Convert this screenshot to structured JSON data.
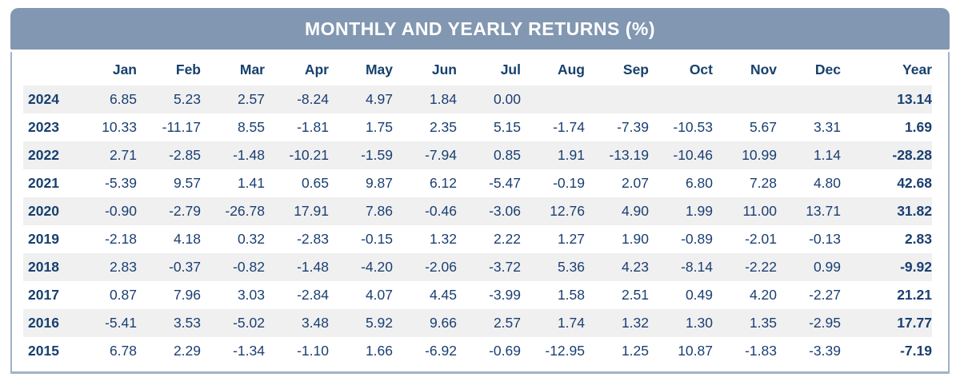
{
  "title": "MONTHLY AND YEARLY RETURNS (%)",
  "colors": {
    "header_background": "#8297B1",
    "header_text": "#FFFFFF",
    "table_text": "#1B3F70",
    "label_text": "#17406D",
    "stripe_row_background": "#F0F0F1",
    "card_border": "#A2B3C8",
    "page_background": "#FFFFFF"
  },
  "table": {
    "columns": [
      "",
      "Jan",
      "Feb",
      "Mar",
      "Apr",
      "May",
      "Jun",
      "Jul",
      "Aug",
      "Sep",
      "Oct",
      "Nov",
      "Dec",
      "Year"
    ],
    "rows": [
      {
        "year": "2024",
        "values": [
          "6.85",
          "5.23",
          "2.57",
          "-8.24",
          "4.97",
          "1.84",
          "0.00",
          "",
          "",
          "",
          "",
          "",
          "13.14"
        ]
      },
      {
        "year": "2023",
        "values": [
          "10.33",
          "-11.17",
          "8.55",
          "-1.81",
          "1.75",
          "2.35",
          "5.15",
          "-1.74",
          "-7.39",
          "-10.53",
          "5.67",
          "3.31",
          "1.69"
        ]
      },
      {
        "year": "2022",
        "values": [
          "2.71",
          "-2.85",
          "-1.48",
          "-10.21",
          "-1.59",
          "-7.94",
          "0.85",
          "1.91",
          "-13.19",
          "-10.46",
          "10.99",
          "1.14",
          "-28.28"
        ]
      },
      {
        "year": "2021",
        "values": [
          "-5.39",
          "9.57",
          "1.41",
          "0.65",
          "9.87",
          "6.12",
          "-5.47",
          "-0.19",
          "2.07",
          "6.80",
          "7.28",
          "4.80",
          "42.68"
        ]
      },
      {
        "year": "2020",
        "values": [
          "-0.90",
          "-2.79",
          "-26.78",
          "17.91",
          "7.86",
          "-0.46",
          "-3.06",
          "12.76",
          "4.90",
          "1.99",
          "11.00",
          "13.71",
          "31.82"
        ]
      },
      {
        "year": "2019",
        "values": [
          "-2.18",
          "4.18",
          "0.32",
          "-2.83",
          "-0.15",
          "1.32",
          "2.22",
          "1.27",
          "1.90",
          "-0.89",
          "-2.01",
          "-0.13",
          "2.83"
        ]
      },
      {
        "year": "2018",
        "values": [
          "2.83",
          "-0.37",
          "-0.82",
          "-1.48",
          "-4.20",
          "-2.06",
          "-3.72",
          "5.36",
          "4.23",
          "-8.14",
          "-2.22",
          "0.99",
          "-9.92"
        ]
      },
      {
        "year": "2017",
        "values": [
          "0.87",
          "7.96",
          "3.03",
          "-2.84",
          "4.07",
          "4.45",
          "-3.99",
          "1.58",
          "2.51",
          "0.49",
          "4.20",
          "-2.27",
          "21.21"
        ]
      },
      {
        "year": "2016",
        "values": [
          "-5.41",
          "3.53",
          "-5.02",
          "3.48",
          "5.92",
          "9.66",
          "2.57",
          "1.74",
          "1.32",
          "1.30",
          "1.35",
          "-2.95",
          "17.77"
        ]
      },
      {
        "year": "2015",
        "values": [
          "6.78",
          "2.29",
          "-1.34",
          "-1.10",
          "1.66",
          "-6.92",
          "-0.69",
          "-12.95",
          "1.25",
          "10.87",
          "-1.83",
          "-3.39",
          "-7.19"
        ]
      }
    ]
  },
  "chart_data": {
    "type": "table",
    "title": "MONTHLY AND YEARLY RETURNS (%)",
    "categories": [
      "Jan",
      "Feb",
      "Mar",
      "Apr",
      "May",
      "Jun",
      "Jul",
      "Aug",
      "Sep",
      "Oct",
      "Nov",
      "Dec",
      "Year"
    ],
    "series": [
      {
        "name": "2024",
        "values": [
          6.85,
          5.23,
          2.57,
          -8.24,
          4.97,
          1.84,
          0.0,
          null,
          null,
          null,
          null,
          null,
          13.14
        ]
      },
      {
        "name": "2023",
        "values": [
          10.33,
          -11.17,
          8.55,
          -1.81,
          1.75,
          2.35,
          5.15,
          -1.74,
          -7.39,
          -10.53,
          5.67,
          3.31,
          1.69
        ]
      },
      {
        "name": "2022",
        "values": [
          2.71,
          -2.85,
          -1.48,
          -10.21,
          -1.59,
          -7.94,
          0.85,
          1.91,
          -13.19,
          -10.46,
          10.99,
          1.14,
          -28.28
        ]
      },
      {
        "name": "2021",
        "values": [
          -5.39,
          9.57,
          1.41,
          0.65,
          9.87,
          6.12,
          -5.47,
          -0.19,
          2.07,
          6.8,
          7.28,
          4.8,
          42.68
        ]
      },
      {
        "name": "2020",
        "values": [
          -0.9,
          -2.79,
          -26.78,
          17.91,
          7.86,
          -0.46,
          -3.06,
          12.76,
          4.9,
          1.99,
          11.0,
          13.71,
          31.82
        ]
      },
      {
        "name": "2019",
        "values": [
          -2.18,
          4.18,
          0.32,
          -2.83,
          -0.15,
          1.32,
          2.22,
          1.27,
          1.9,
          -0.89,
          -2.01,
          -0.13,
          2.83
        ]
      },
      {
        "name": "2018",
        "values": [
          2.83,
          -0.37,
          -0.82,
          -1.48,
          -4.2,
          -2.06,
          -3.72,
          5.36,
          4.23,
          -8.14,
          -2.22,
          0.99,
          -9.92
        ]
      },
      {
        "name": "2017",
        "values": [
          0.87,
          7.96,
          3.03,
          -2.84,
          4.07,
          4.45,
          -3.99,
          1.58,
          2.51,
          0.49,
          4.2,
          -2.27,
          21.21
        ]
      },
      {
        "name": "2016",
        "values": [
          -5.41,
          3.53,
          -5.02,
          3.48,
          5.92,
          9.66,
          2.57,
          1.74,
          1.32,
          1.3,
          1.35,
          -2.95,
          17.77
        ]
      },
      {
        "name": "2015",
        "values": [
          6.78,
          2.29,
          -1.34,
          -1.1,
          1.66,
          -6.92,
          -0.69,
          -12.95,
          1.25,
          10.87,
          -1.83,
          -3.39,
          -7.19
        ]
      }
    ]
  }
}
